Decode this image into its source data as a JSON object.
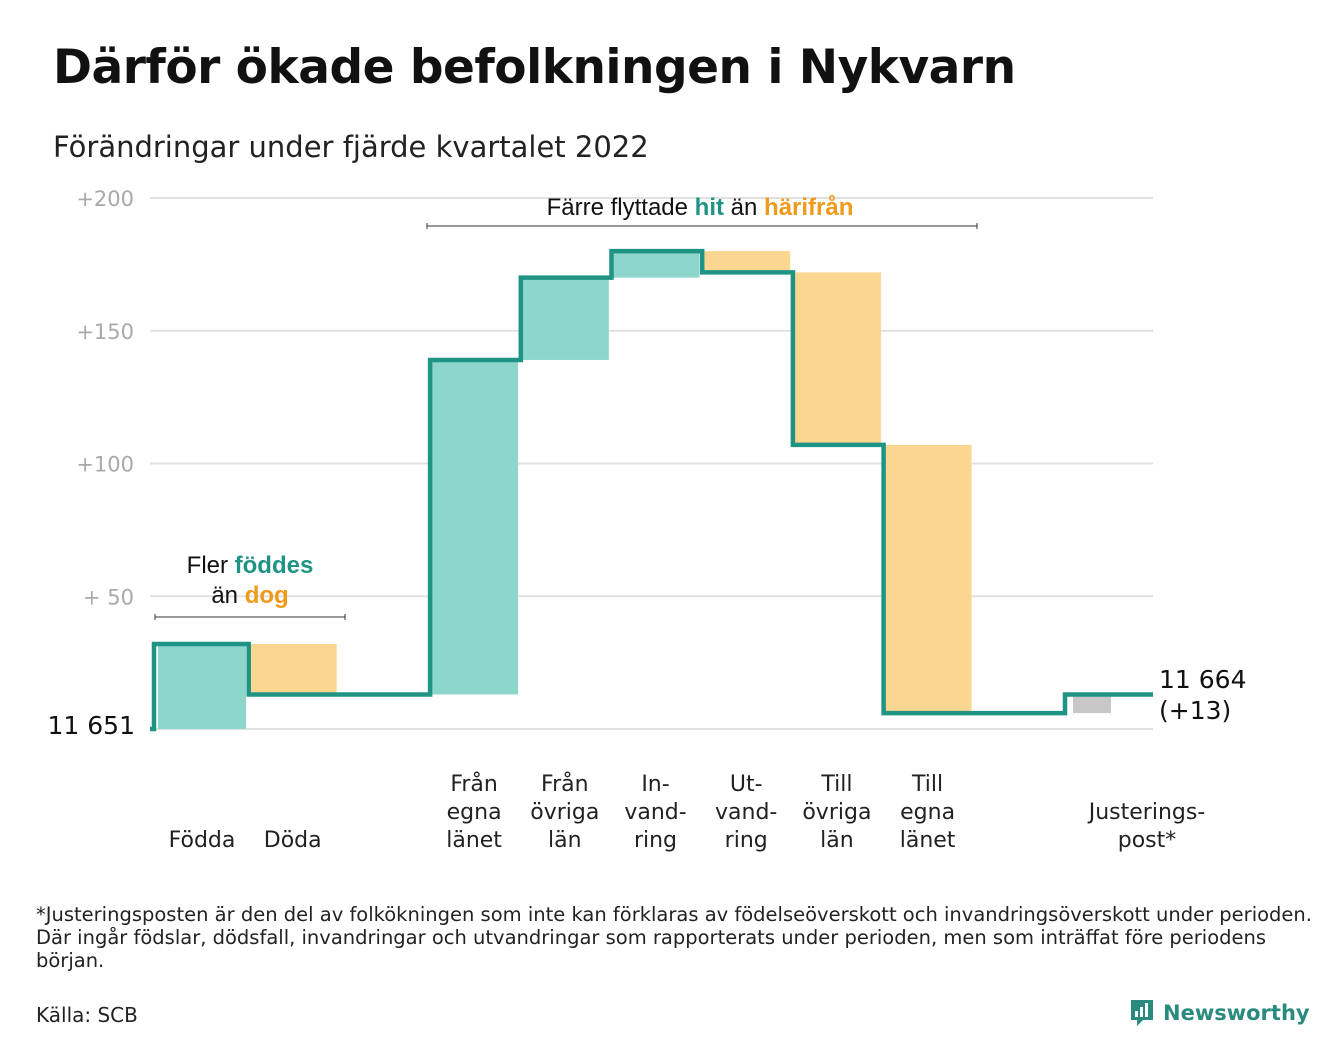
{
  "title": "Därför ökade befolkningen i Nykvarn",
  "subtitle": "Förändringar under fjärde kvartalet 2022",
  "colors": {
    "increase": "#8dd6cc",
    "decrease": "#fbd690",
    "adjustment": "#c8c8c8",
    "line": "#1f9484",
    "accent_orange": "#ef9a1a",
    "grid": "#e1e1e1"
  },
  "chart_data": {
    "type": "waterfall",
    "title": "Därför ökade befolkningen i Nykvarn",
    "subtitle": "Förändringar under fjärde kvartalet 2022",
    "start_value": 11651,
    "end_value": 11664,
    "start_label": "11 651",
    "end_label": "11 664",
    "end_change_label": "(+13)",
    "ylim": [
      0,
      200
    ],
    "yticks": [
      {
        "value": 200,
        "label": "+200"
      },
      {
        "value": 150,
        "label": "+150"
      },
      {
        "value": 100,
        "label": "+100"
      },
      {
        "value": 50,
        "label": "+ 50"
      }
    ],
    "grid": true,
    "steps": [
      {
        "label": [
          "Födda"
        ],
        "value": 32,
        "type": "increase"
      },
      {
        "label": [
          "Döda"
        ],
        "value": -19,
        "type": "decrease"
      },
      {
        "label": [],
        "value": 0,
        "type": "gap"
      },
      {
        "label": [
          "Från",
          "egna",
          "länet"
        ],
        "value": 126,
        "type": "increase"
      },
      {
        "label": [
          "Från",
          "övriga",
          "län"
        ],
        "value": 31,
        "type": "increase"
      },
      {
        "label": [
          "In-",
          "vand-",
          "ring"
        ],
        "value": 10,
        "type": "increase"
      },
      {
        "label": [
          "Ut-",
          "vand-",
          "ring"
        ],
        "value": -8,
        "type": "decrease"
      },
      {
        "label": [
          "Till",
          "övriga",
          "län"
        ],
        "value": -65,
        "type": "decrease"
      },
      {
        "label": [
          "Till",
          "egna",
          "länet"
        ],
        "value": -101,
        "type": "decrease"
      },
      {
        "label": [],
        "value": 0,
        "type": "gap"
      },
      {
        "label": [
          "Justerings-",
          "post*"
        ],
        "value": 7,
        "type": "adjustment"
      }
    ],
    "annotations": [
      {
        "group": "births",
        "text": [
          {
            "line": 1,
            "parts": [
              {
                "text": "Fler ",
                "style": "plain"
              },
              {
                "text": "föddes",
                "style": "teal"
              }
            ]
          },
          {
            "line": 2,
            "parts": [
              {
                "text": "än ",
                "style": "plain"
              },
              {
                "text": "dog",
                "style": "orange"
              }
            ]
          }
        ]
      },
      {
        "group": "migration",
        "text": [
          {
            "line": 1,
            "parts": [
              {
                "text": "Färre flyttade ",
                "style": "plain"
              },
              {
                "text": "hit",
                "style": "teal"
              },
              {
                "text": " än ",
                "style": "plain"
              },
              {
                "text": "härifrån",
                "style": "orange"
              }
            ]
          }
        ]
      }
    ]
  },
  "footnote": "*Justeringsposten är den del av folkökningen som inte kan förklaras av födelseöverskott och invandringsöverskott under perioden. Där ingår födslar, dödsfall, invandringar och utvandringar som rapporterats under perioden, men som inträffat före periodens början.",
  "source": "Källa: SCB",
  "brand": {
    "name": "Newsworthy",
    "icon": "newsworthy-logo-icon"
  }
}
